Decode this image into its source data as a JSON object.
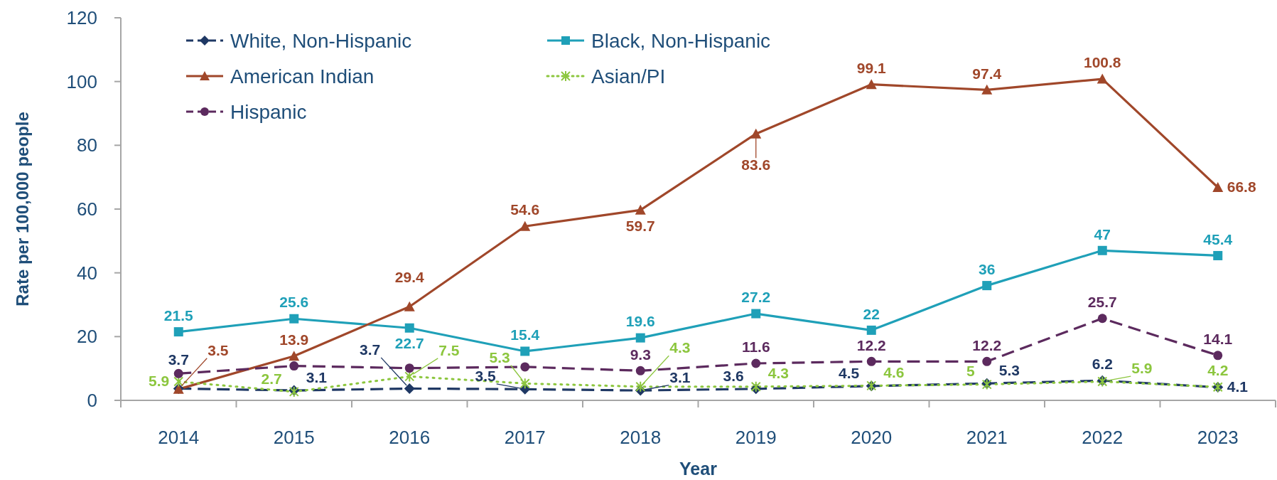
{
  "chart_data": {
    "type": "line",
    "xlabel": "Year",
    "ylabel": "Rate per 100,000 people",
    "categories": [
      "2014",
      "2015",
      "2016",
      "2017",
      "2018",
      "2019",
      "2020",
      "2021",
      "2022",
      "2023"
    ],
    "ylim": [
      0,
      120
    ],
    "yticks": [
      0,
      20,
      40,
      60,
      80,
      100,
      120
    ],
    "legend": "top left",
    "series": [
      {
        "name": "White, Non-Hispanic",
        "color": "#1f3864",
        "line_style": "dashed",
        "marker": "diamond",
        "values": [
          3.7,
          3.1,
          3.7,
          3.5,
          3.1,
          3.6,
          4.5,
          5.3,
          6.2,
          4.1
        ],
        "value_labels": [
          "3.7",
          "3.1",
          "3.7",
          "3.5",
          "3.1",
          "3.6",
          "4.5",
          "5.3",
          "6.2",
          "4.1"
        ]
      },
      {
        "name": "Black, Non-Hispanic",
        "color": "#1fa0b8",
        "line_style": "solid",
        "marker": "square",
        "values": [
          21.5,
          25.6,
          22.7,
          15.4,
          19.6,
          27.2,
          22,
          36,
          47,
          45.4
        ],
        "value_labels": [
          "21.5",
          "25.6",
          "22.7",
          "15.4",
          "19.6",
          "27.2",
          "22",
          "36",
          "47",
          "45.4"
        ]
      },
      {
        "name": "American Indian",
        "color": "#a0472a",
        "line_style": "solid",
        "marker": "triangle",
        "values": [
          3.5,
          13.9,
          29.4,
          54.6,
          59.7,
          83.6,
          99.1,
          97.4,
          100.8,
          66.8
        ],
        "value_labels": [
          "3.5",
          "13.9",
          "29.4",
          "54.6",
          "59.7",
          "83.6",
          "99.1",
          "97.4",
          "100.8",
          "66.8"
        ]
      },
      {
        "name": "Asian/PI",
        "color": "#8cc63e",
        "line_style": "dotted",
        "marker": "cross",
        "values": [
          5.9,
          2.7,
          7.5,
          5.3,
          4.3,
          4.3,
          4.6,
          5,
          5.9,
          4.2
        ],
        "value_labels": [
          "5.9",
          "2.7",
          "7.5",
          "5.3",
          "4.3",
          "4.3",
          "4.6",
          "5",
          "5.9",
          "4.2"
        ]
      },
      {
        "name": "Hispanic",
        "color": "#5c2a5e",
        "line_style": "dashed",
        "marker": "circle",
        "values": [
          8.4,
          10.8,
          10.1,
          10.5,
          9.3,
          11.6,
          12.2,
          12.2,
          25.7,
          14.1
        ],
        "value_labels": [
          null,
          null,
          null,
          null,
          "9.3",
          "11.6",
          "12.2",
          "12.2",
          "25.7",
          "14.1"
        ]
      }
    ]
  }
}
